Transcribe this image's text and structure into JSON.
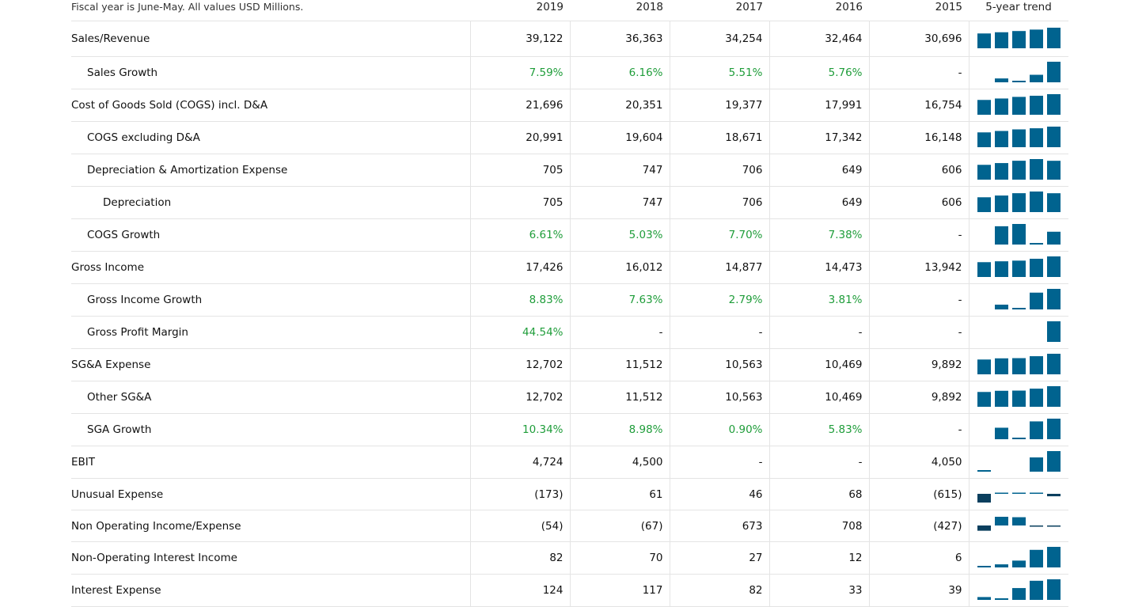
{
  "header": {
    "note": "Fiscal year is June-May. All values USD Millions.",
    "years": [
      "2019",
      "2018",
      "2017",
      "2016",
      "2015"
    ],
    "trend_label": "5-year trend"
  },
  "colors": {
    "positive_text": "#1f9d3a",
    "bar_positive": "#00638f",
    "bar_negative": "#0b3f5e",
    "divider": "#e4e4e4"
  },
  "rows": [
    {
      "label": "Sales/Revenue",
      "indent": 0,
      "values": [
        "39,122",
        "36,363",
        "34,254",
        "32,464",
        "30,696"
      ],
      "positive": false
    },
    {
      "label": "Sales Growth",
      "indent": 1,
      "values": [
        "7.59%",
        "6.16%",
        "5.51%",
        "5.76%",
        "-"
      ],
      "positive": true
    },
    {
      "label": "Cost of Goods Sold (COGS) incl. D&A",
      "indent": 0,
      "values": [
        "21,696",
        "20,351",
        "19,377",
        "17,991",
        "16,754"
      ],
      "positive": false
    },
    {
      "label": "COGS excluding D&A",
      "indent": 1,
      "values": [
        "20,991",
        "19,604",
        "18,671",
        "17,342",
        "16,148"
      ],
      "positive": false
    },
    {
      "label": "Depreciation & Amortization Expense",
      "indent": 1,
      "values": [
        "705",
        "747",
        "706",
        "649",
        "606"
      ],
      "positive": false
    },
    {
      "label": "Depreciation",
      "indent": 2,
      "values": [
        "705",
        "747",
        "706",
        "649",
        "606"
      ],
      "positive": false
    },
    {
      "label": "COGS Growth",
      "indent": 1,
      "values": [
        "6.61%",
        "5.03%",
        "7.70%",
        "7.38%",
        "-"
      ],
      "positive": true
    },
    {
      "label": "Gross Income",
      "indent": 0,
      "values": [
        "17,426",
        "16,012",
        "14,877",
        "14,473",
        "13,942"
      ],
      "positive": false
    },
    {
      "label": "Gross Income Growth",
      "indent": 1,
      "values": [
        "8.83%",
        "7.63%",
        "2.79%",
        "3.81%",
        "-"
      ],
      "positive": true
    },
    {
      "label": "Gross Profit Margin",
      "indent": 1,
      "values": [
        "44.54%",
        "-",
        "-",
        "-",
        "-"
      ],
      "positive": true
    },
    {
      "label": "SG&A Expense",
      "indent": 0,
      "values": [
        "12,702",
        "11,512",
        "10,563",
        "10,469",
        "9,892"
      ],
      "positive": false
    },
    {
      "label": "Other SG&A",
      "indent": 1,
      "values": [
        "12,702",
        "11,512",
        "10,563",
        "10,469",
        "9,892"
      ],
      "positive": false
    },
    {
      "label": "SGA Growth",
      "indent": 1,
      "values": [
        "10.34%",
        "8.98%",
        "0.90%",
        "5.83%",
        "-"
      ],
      "positive": true
    },
    {
      "label": "EBIT",
      "indent": 0,
      "values": [
        "4,724",
        "4,500",
        "-",
        "-",
        "4,050"
      ],
      "positive": false
    },
    {
      "label": "Unusual Expense",
      "indent": 0,
      "values": [
        "(173)",
        "61",
        "46",
        "68",
        "(615)"
      ],
      "positive": false
    },
    {
      "label": "Non Operating Income/Expense",
      "indent": 0,
      "values": [
        "(54)",
        "(67)",
        "673",
        "708",
        "(427)"
      ],
      "positive": false
    },
    {
      "label": "Non-Operating Interest Income",
      "indent": 0,
      "values": [
        "82",
        "70",
        "27",
        "12",
        "6"
      ],
      "positive": false
    },
    {
      "label": "Interest Expense",
      "indent": 0,
      "values": [
        "124",
        "117",
        "82",
        "33",
        "39"
      ],
      "positive": false
    }
  ]
}
